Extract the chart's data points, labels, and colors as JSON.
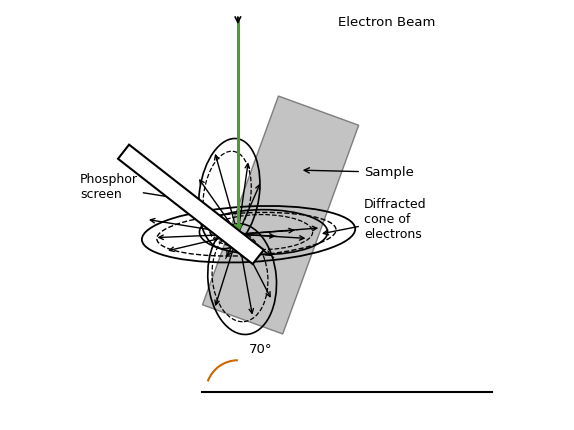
{
  "background_color": "#ffffff",
  "electron_beam_color": "#4a9e2f",
  "sample_color": "#aaaaaa",
  "sample_alpha": 0.7,
  "angle_color": "#cc6600",
  "figsize": [
    5.74,
    4.3
  ],
  "dpi": 100,
  "ox": 0.385,
  "oy": 0.455,
  "labels": {
    "electron_beam": "Electron Beam",
    "phosphor_screen": "Phosphor\nscreen",
    "sample": "Sample",
    "diffracted_cone": "Diffracted\ncone of\nelectrons",
    "angle_70": "70°"
  }
}
